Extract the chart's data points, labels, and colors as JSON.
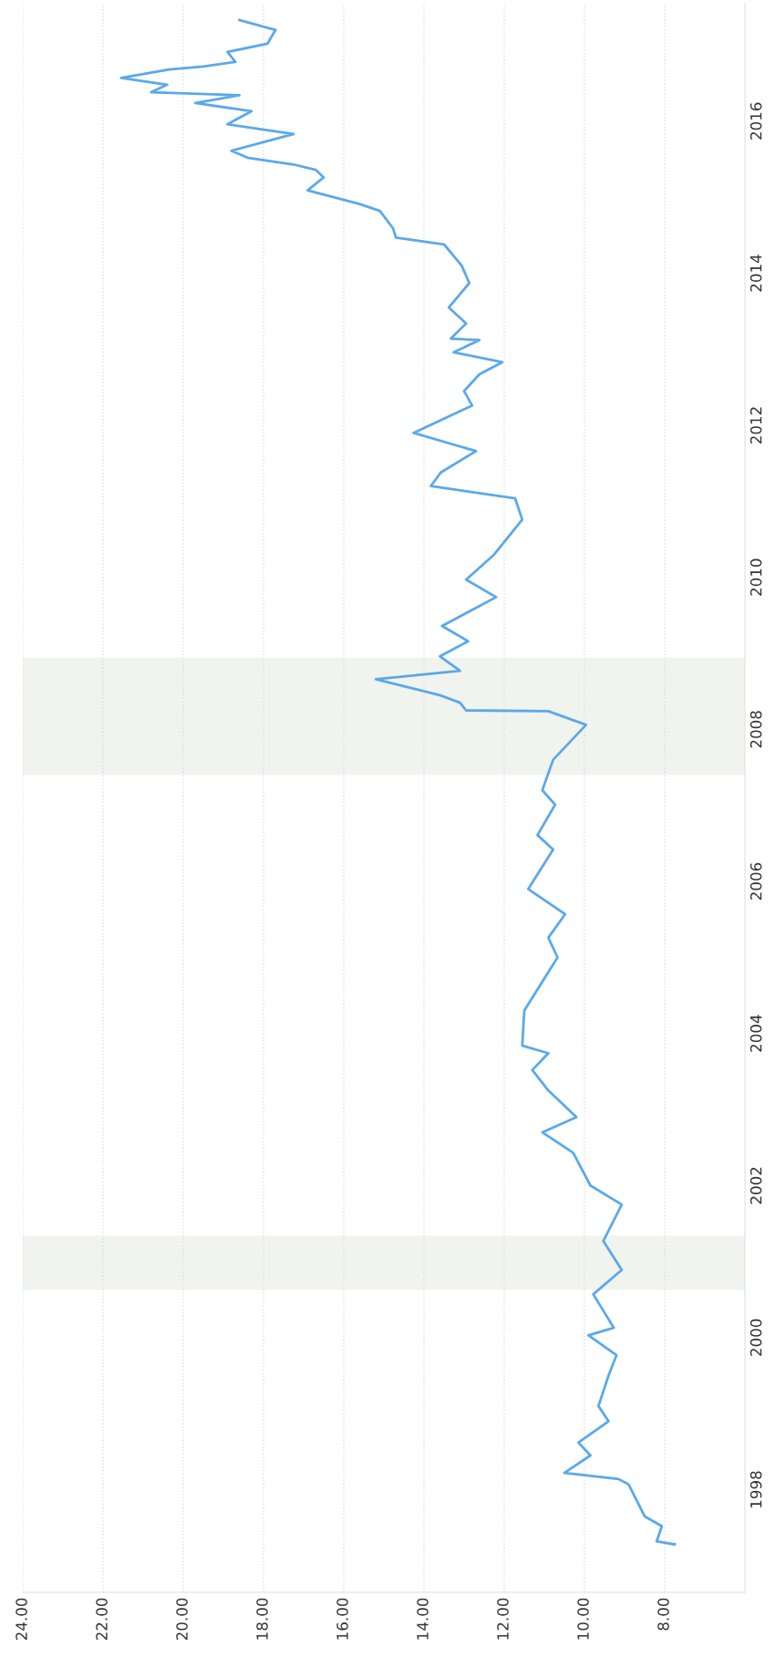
{
  "chart_data": {
    "type": "line",
    "x": [
      7.75,
      8.2,
      8.07,
      8.5,
      8.9,
      9.15,
      10.5,
      9.85,
      10.15,
      9.4,
      9.65,
      9.4,
      9.2,
      9.9,
      9.27,
      9.78,
      9.07,
      9.53,
      9.07,
      9.85,
      10.28,
      11.05,
      10.2,
      10.9,
      11.3,
      10.9,
      11.55,
      11.5,
      10.67,
      10.9,
      10.48,
      11.4,
      10.78,
      11.17,
      10.73,
      11.05,
      10.78,
      9.96,
      10.9,
      12.95,
      13.1,
      13.6,
      15.2,
      13.1,
      13.6,
      12.9,
      13.55,
      12.2,
      12.95,
      12.25,
      11.55,
      11.73,
      13.83,
      13.58,
      12.7,
      14.26,
      12.8,
      13.0,
      12.62,
      12.05,
      13.26,
      12.62,
      13.33,
      12.95,
      13.38,
      12.87,
      13.06,
      13.5,
      14.7,
      14.77,
      15.1,
      15.6,
      16.9,
      16.5,
      16.7,
      17.25,
      18.4,
      18.8,
      17.25,
      18.9,
      18.3,
      19.7,
      18.6,
      20.8,
      20.4,
      21.55,
      20.35,
      19.5,
      18.7,
      18.9,
      17.9,
      17.7,
      18.6
    ],
    "series": [
      {
        "color": "#5aa9ea",
        "values": [
          1997.28,
          1997.32,
          1997.52,
          1997.65,
          1998.07,
          1998.14,
          1998.22,
          1998.45,
          1998.62,
          1998.9,
          1999.1,
          1999.5,
          1999.77,
          2000.03,
          2000.13,
          2000.57,
          2000.89,
          2001.27,
          2001.75,
          2002.0,
          2002.43,
          2002.7,
          2002.9,
          2003.25,
          2003.52,
          2003.74,
          2003.84,
          2004.3,
          2005.0,
          2005.26,
          2005.57,
          2005.9,
          2006.42,
          2006.61,
          2007.01,
          2007.2,
          2007.6,
          2008.06,
          2008.24,
          2008.25,
          2008.35,
          2008.45,
          2008.66,
          2008.77,
          2008.96,
          2009.16,
          2009.36,
          2009.74,
          2009.97,
          2010.3,
          2010.76,
          2011.04,
          2011.2,
          2011.38,
          2011.66,
          2011.9,
          2012.26,
          2012.45,
          2012.67,
          2012.83,
          2012.96,
          2013.12,
          2013.14,
          2013.34,
          2013.55,
          2013.87,
          2014.1,
          2014.38,
          2014.47,
          2014.59,
          2014.82,
          2014.91,
          2015.09,
          2015.26,
          2015.36,
          2015.43,
          2015.52,
          2015.61,
          2015.83,
          2015.96,
          2016.13,
          2016.24,
          2016.34,
          2016.38,
          2016.48,
          2016.57,
          2016.68,
          2016.72,
          2016.78,
          2016.91,
          2017.02,
          2017.2,
          2017.33
        ]
      }
    ],
    "xlim": [
      24,
      6
    ],
    "xticks": [
      {
        "value": 24,
        "label": "24.00"
      },
      {
        "value": 22,
        "label": "22.00"
      },
      {
        "value": 20,
        "label": "20.00"
      },
      {
        "value": 18,
        "label": "18.00"
      },
      {
        "value": 16,
        "label": "16.00"
      },
      {
        "value": 14,
        "label": "14.00"
      },
      {
        "value": 12,
        "label": "12.00"
      },
      {
        "value": 10,
        "label": "10.00"
      },
      {
        "value": 8,
        "label": "8.00"
      }
    ],
    "ylim": [
      1996.65,
      2017.55
    ],
    "yticks": [
      1998,
      2000,
      2002,
      2004,
      2006,
      2008,
      2010,
      2012,
      2014,
      2016
    ],
    "bands": [
      {
        "axis": "y",
        "from": 2000.63,
        "to": 2001.34,
        "color": "#f1f3ee"
      },
      {
        "axis": "y",
        "from": 2007.4,
        "to": 2008.94,
        "color": "#f1f3ee"
      }
    ],
    "grid": "x"
  }
}
